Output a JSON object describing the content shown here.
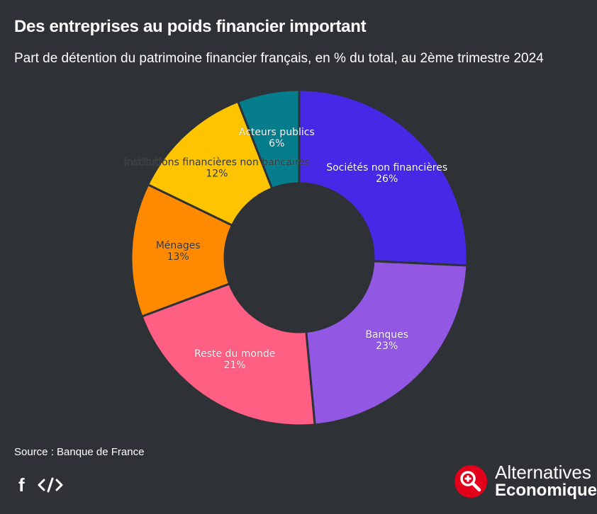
{
  "header": {
    "title": "Des entreprises au poids financier important",
    "subtitle": "Part de détention du patrimoine financier français, en % du total, au 2ème trimestre 2024"
  },
  "chart_data": {
    "type": "pie",
    "donut": true,
    "start_angle_deg": 0,
    "slices": [
      {
        "label": "Sociétés non financières",
        "value": 26,
        "display": "26%",
        "color": "#4529e6",
        "label_color": "#ffffff"
      },
      {
        "label": "Banques",
        "value": 23,
        "display": "23%",
        "color": "#9257e3",
        "label_color": "#ffffff"
      },
      {
        "label": "Reste du monde",
        "value": 21,
        "display": "21%",
        "color": "#ff5f82",
        "label_color": "#ffffff"
      },
      {
        "label": "Ménages",
        "value": 13,
        "display": "13%",
        "color": "#ff8a00",
        "label_color": "#2e3236"
      },
      {
        "label": "Institutions financières non bancaires",
        "value": 12,
        "display": "12%",
        "color": "#ffc400",
        "label_color": "#2e3236"
      },
      {
        "label": "Acteurs publics",
        "value": 6,
        "display": "6%",
        "color": "#057d8c",
        "label_color": "#ffffff"
      }
    ]
  },
  "footer": {
    "source": "Source : Banque de France",
    "share_facebook_icon": "f",
    "embed_icon": "code-icon",
    "logo_line1": "Alternatives",
    "logo_line2": "Economiques",
    "logo_color": "#e3001b"
  }
}
